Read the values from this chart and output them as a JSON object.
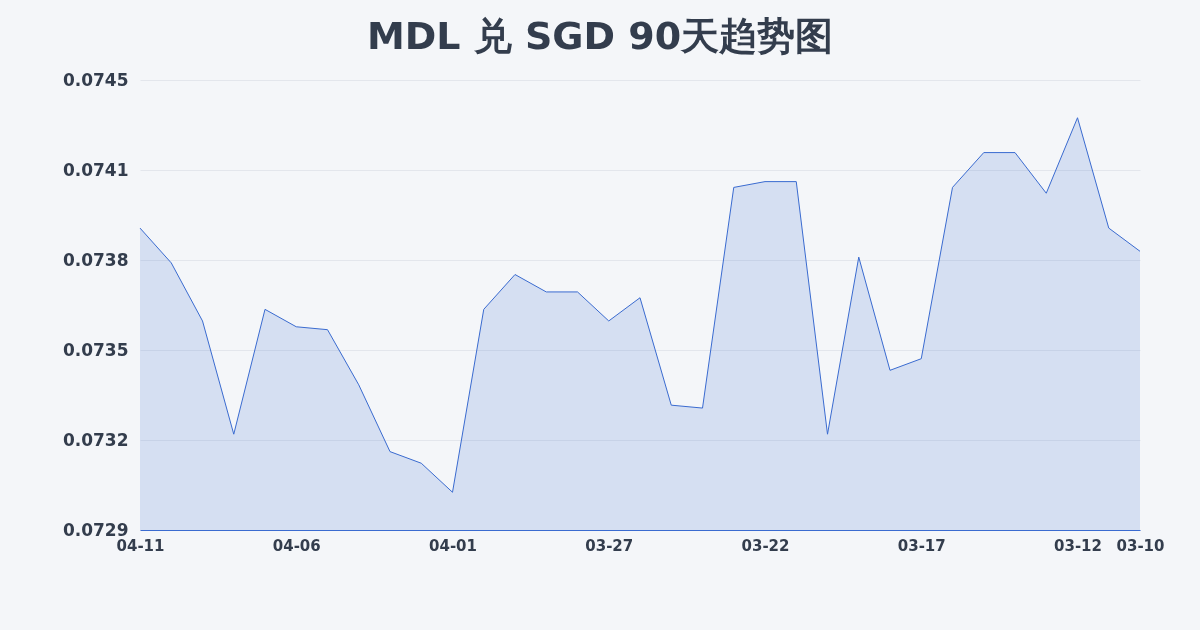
{
  "chart_data": {
    "type": "area",
    "title": "MDL 兑 SGD 90天趋势图",
    "categories": [
      "04-11",
      null,
      null,
      null,
      null,
      "04-06",
      null,
      null,
      null,
      null,
      "04-01",
      null,
      null,
      null,
      null,
      "03-27",
      null,
      null,
      null,
      null,
      "03-22",
      null,
      null,
      null,
      null,
      "03-17",
      null,
      null,
      null,
      null,
      "03-12",
      null,
      "03-10"
    ],
    "series": [
      {
        "color": "#3a6bd0",
        "values": [
          0.07394,
          0.07382,
          0.07362,
          0.07323,
          0.07366,
          0.0736,
          0.07359,
          0.0734,
          0.07317,
          0.07313,
          0.07303,
          0.07366,
          0.07378,
          0.07372,
          0.07372,
          0.07362,
          0.0737,
          0.07333,
          0.07332,
          0.07408,
          0.0741,
          0.0741,
          0.07323,
          0.07384,
          0.07345,
          0.07349,
          0.07408,
          0.0742,
          0.0742,
          0.07406,
          0.07432,
          0.07394,
          0.07386
        ]
      }
    ],
    "ylim": [
      0.0729,
      0.07445
    ],
    "yticks": [
      0.0729,
      {
        "value": 0.07321,
        "label": "0.0732"
      },
      {
        "value": 0.07352,
        "label": "0.0735"
      },
      {
        "value": 0.07383,
        "label": "0.0738"
      },
      {
        "value": 0.07414,
        "label": "0.0741"
      },
      {
        "value": 0.07445,
        "label": "0.0745"
      }
    ],
    "grid": "y"
  }
}
